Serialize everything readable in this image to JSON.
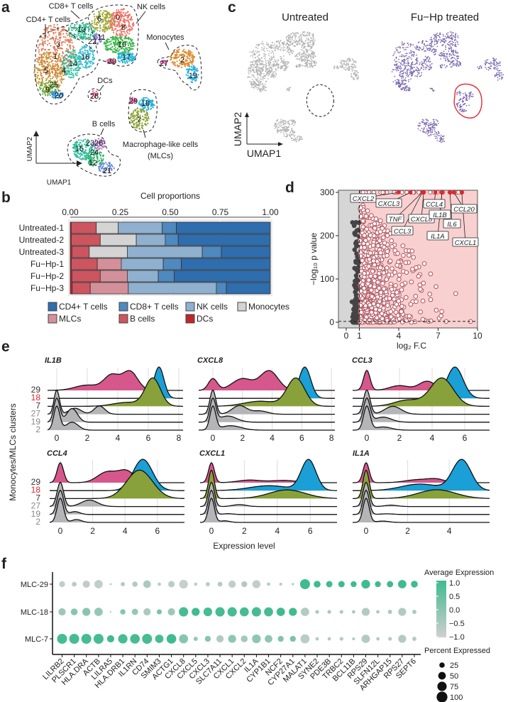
{
  "panel_letters": {
    "a": "a",
    "b": "b",
    "c": "c",
    "d": "d",
    "e": "e",
    "f": "f"
  },
  "panel_a": {
    "groups": {
      "cd8": "CD8+ T cells",
      "nk": "NK cells",
      "cd4": "CD4+ T cells",
      "mono": "Monocytes",
      "dcs": "DCs",
      "bcells": "B cells",
      "mlc_1": "Macrophage-like cells",
      "mlc_2": "(MLCs)"
    },
    "clusters": [
      "6",
      "0",
      "8",
      "13",
      "11",
      "22",
      "10",
      "17",
      "30",
      "3",
      "1",
      "16",
      "14",
      "5",
      "4",
      "25",
      "9",
      "20",
      "28",
      "27",
      "2",
      "19",
      "29",
      "18",
      "7",
      "23",
      "26",
      "15",
      "24",
      "12",
      "21"
    ],
    "xlabel": "UMAP1",
    "ylabel": "UMAP2"
  },
  "panel_c": {
    "title_left": "Untreated",
    "title_right": "Fu−Hp treated",
    "xlabel": "UMAP1",
    "ylabel": "UMAP2",
    "point_color_untreated": "#b3b3b3",
    "point_color_treated": "#7a69b0",
    "highlight_color": "#e8232a"
  },
  "chart_data": [
    {
      "panel": "b",
      "type": "bar",
      "stacked": true,
      "orientation": "horizontal",
      "title": "Cell proportions",
      "categories": [
        "Untreated-1",
        "Untreated-2",
        "Untreated-3",
        "Fu−Hp-1",
        "Fu−Hp-2",
        "Fu−Hp-3"
      ],
      "xticks": [
        "0.00",
        "0.25",
        "0.50",
        "0.75",
        "1.00"
      ],
      "xlim": [
        0,
        1
      ],
      "series": [
        {
          "name": "DCs",
          "color": "#c0262c",
          "values": [
            0.005,
            0.005,
            0.008,
            0.005,
            0.008,
            0.01
          ]
        },
        {
          "name": "B cells",
          "color": "#cc5560",
          "values": [
            0.125,
            0.145,
            0.087,
            0.13,
            0.142,
            0.09
          ]
        },
        {
          "name": "MLCs",
          "color": "#d4909a",
          "values": [
            0,
            0,
            0,
            0.12,
            0.135,
            0.19
          ]
        },
        {
          "name": "Monocytes",
          "color": "#d4d4d4",
          "values": [
            0.11,
            0.18,
            0.19,
            0,
            0,
            0
          ]
        },
        {
          "name": "NK cells",
          "color": "#8fb0cf",
          "values": [
            0.22,
            0.145,
            0.375,
            0.21,
            0.155,
            0.44
          ]
        },
        {
          "name": "CD8+ T cells",
          "color": "#4e89bf",
          "values": [
            0.07,
            0.065,
            0.095,
            0.09,
            0.08,
            0.05
          ]
        },
        {
          "name": "CD4+ T cells",
          "color": "#2e6dae",
          "values": [
            0.47,
            0.46,
            0.245,
            0.445,
            0.48,
            0.22
          ]
        }
      ],
      "legend_order": [
        "CD4+ T cells",
        "CD8+ T cells",
        "NK cells",
        "Monocytes",
        "MLCs",
        "B cells",
        "DCs"
      ],
      "legend_position": "bottom"
    },
    {
      "panel": "d",
      "type": "scatter",
      "xlabel": "log₂ F.C",
      "ylabel": "−log₁₀ p value",
      "xticks": [
        0,
        1,
        4,
        7,
        10
      ],
      "yticks": [
        0,
        100,
        200,
        300
      ],
      "xlim": [
        -0.6,
        10
      ],
      "ylim": [
        -5,
        305
      ],
      "fc_threshold": 1,
      "labeled_genes": [
        {
          "gene": "CXCL2",
          "log2fc": 4.0,
          "neglog10p": 300
        },
        {
          "gene": "CXCL3",
          "log2fc": 4.9,
          "neglog10p": 300
        },
        {
          "gene": "TNF",
          "log2fc": 5.8,
          "neglog10p": 300
        },
        {
          "gene": "CCL3",
          "log2fc": 5.8,
          "neglog10p": 300
        },
        {
          "gene": "CXCL8",
          "log2fc": 5.9,
          "neglog10p": 300
        },
        {
          "gene": "CCL4",
          "log2fc": 6.8,
          "neglog10p": 300
        },
        {
          "gene": "IL1B",
          "log2fc": 7.3,
          "neglog10p": 300
        },
        {
          "gene": "IL1A",
          "log2fc": 7.3,
          "neglog10p": 300
        },
        {
          "gene": "IL6",
          "log2fc": 7.9,
          "neglog10p": 300
        },
        {
          "gene": "CCL20",
          "log2fc": 8.2,
          "neglog10p": 300
        },
        {
          "gene": "CXCL1",
          "log2fc": 8.8,
          "neglog10p": 300
        }
      ],
      "colors": {
        "up": "#b45c66",
        "up_fill": "#ffffff",
        "ns": "#444444",
        "labeled": "#e8232a",
        "up_region": "#f9d0d0",
        "ns_region": "#d6d6d6"
      }
    },
    {
      "panel": "e",
      "type": "area",
      "subtype": "ridgeline",
      "xlabel": "Expression level",
      "ylabel": "Monocytes/MLCs clusters",
      "clusters": [
        "29",
        "18",
        "7",
        "27",
        "19",
        "2"
      ],
      "cluster_colors": [
        "#d6578c",
        "#1a9fd6",
        "#88a13a",
        "#b5b5b8",
        "#b5b5b8",
        "#b5b5b8"
      ],
      "cluster_label_colors": [
        "#333333",
        "#e8232a",
        "#333333",
        "#888888",
        "#888888",
        "#888888"
      ],
      "genes": [
        {
          "gene": "IL1B",
          "xticks": [
            0,
            2,
            4,
            6,
            8
          ],
          "xmax": 8.3,
          "density_components": [
            [
              [
                2,
                0.8,
                0.2
              ],
              [
                3.6,
                0.5,
                0.35
              ],
              [
                4.8,
                0.5,
                0.45
              ]
            ],
            [
              [
                6.7,
                0.33,
                1
              ]
            ],
            [
              [
                6.3,
                0.5,
                0.8
              ],
              [
                4.6,
                0.9,
                0.2
              ]
            ],
            [
              [
                0,
                0.18,
                0.45
              ],
              [
                1.2,
                0.4,
                0.25
              ],
              [
                2.8,
                0.35,
                0.3
              ]
            ],
            [
              [
                0,
                0.2,
                0.5
              ],
              [
                1,
                0.35,
                0.5
              ]
            ],
            [
              [
                0,
                0.2,
                0.6
              ],
              [
                1,
                0.4,
                0.4
              ]
            ]
          ]
        },
        {
          "gene": "CXCL8",
          "xticks": [
            0,
            2,
            4,
            6,
            8
          ],
          "xmax": 8.2,
          "density_components": [
            [
              [
                0,
                0.3,
                0.15
              ],
              [
                2,
                0.7,
                0.35
              ],
              [
                3.8,
                0.6,
                0.5
              ]
            ],
            [
              [
                6.2,
                0.4,
                1
              ]
            ],
            [
              [
                5.6,
                0.6,
                0.75
              ],
              [
                3.2,
                1.1,
                0.25
              ]
            ],
            [
              [
                0,
                0.2,
                0.45
              ],
              [
                1.8,
                0.5,
                0.4
              ],
              [
                3.2,
                0.5,
                0.15
              ]
            ],
            [
              [
                0,
                0.2,
                0.55
              ],
              [
                1,
                0.6,
                0.45
              ]
            ],
            [
              [
                0,
                0.2,
                0.6
              ],
              [
                1.2,
                0.7,
                0.4
              ]
            ]
          ]
        },
        {
          "gene": "CCL3",
          "xticks": [
            0,
            2,
            4,
            6
          ],
          "xmax": 7.4,
          "density_components": [
            [
              [
                0,
                0.2,
                0.35
              ],
              [
                2,
                0.6,
                0.25
              ],
              [
                3.7,
                0.5,
                0.4
              ]
            ],
            [
              [
                5.4,
                0.5,
                1
              ]
            ],
            [
              [
                4.6,
                0.7,
                0.8
              ],
              [
                2.5,
                0.8,
                0.2
              ]
            ],
            [
              [
                0,
                0.2,
                0.55
              ],
              [
                1.6,
                0.5,
                0.45
              ]
            ],
            [
              [
                0,
                0.2,
                0.65
              ],
              [
                1,
                0.5,
                0.35
              ]
            ],
            [
              [
                0,
                0.2,
                0.75
              ],
              [
                1,
                0.5,
                0.25
              ]
            ]
          ]
        },
        {
          "gene": "CCL4",
          "xticks": [
            0,
            2,
            4,
            6
          ],
          "xmax": 7.6,
          "density_components": [
            [
              [
                0,
                0.2,
                0.25
              ],
              [
                2.9,
                0.6,
                0.4
              ],
              [
                4.1,
                0.5,
                0.35
              ]
            ],
            [
              [
                5.1,
                0.6,
                1
              ]
            ],
            [
              [
                4.9,
                0.8,
                1
              ]
            ],
            [
              [
                0,
                0.2,
                0.6
              ],
              [
                1.8,
                0.5,
                0.4
              ]
            ],
            [
              [
                0,
                0.2,
                0.85
              ],
              [
                0.9,
                0.3,
                0.15
              ]
            ],
            [
              [
                0,
                0.2,
                0.85
              ],
              [
                1,
                0.3,
                0.15
              ]
            ]
          ]
        },
        {
          "gene": "CXCL1",
          "xticks": [
            0,
            2,
            4,
            6
          ],
          "xmax": 7.6,
          "density_components": [
            [
              [
                0,
                0.18,
                0.5
              ],
              [
                2.3,
                0.7,
                0.25
              ],
              [
                4.4,
                0.8,
                0.25
              ]
            ],
            [
              [
                5.9,
                0.45,
                0.7
              ],
              [
                3.5,
                1.2,
                0.3
              ]
            ],
            [
              [
                0,
                0.18,
                0.35
              ],
              [
                4.6,
                1.1,
                0.65
              ]
            ],
            [
              [
                0,
                0.18,
                0.85
              ],
              [
                1.7,
                0.4,
                0.15
              ]
            ],
            [
              [
                0,
                0.18,
                0.95
              ],
              [
                1,
                0.3,
                0.05
              ]
            ],
            [
              [
                0,
                0.18,
                0.9
              ],
              [
                0.8,
                0.3,
                0.1
              ]
            ]
          ]
        },
        {
          "gene": "IL1A",
          "xticks": [
            0,
            2,
            4
          ],
          "xmax": 5.8,
          "density_components": [
            [
              [
                0,
                0.15,
                0.5
              ],
              [
                2.5,
                0.6,
                0.3
              ],
              [
                3.4,
                0.4,
                0.2
              ]
            ],
            [
              [
                4.6,
                0.45,
                0.7
              ],
              [
                2.6,
                0.9,
                0.3
              ]
            ],
            [
              [
                0,
                0.15,
                0.35
              ],
              [
                3.4,
                0.9,
                0.65
              ]
            ],
            [
              [
                0,
                0.15,
                0.9
              ],
              [
                1.2,
                0.3,
                0.1
              ]
            ],
            [
              [
                0,
                0.15,
                0.95
              ],
              [
                1,
                0.3,
                0.05
              ]
            ],
            [
              [
                0,
                0.15,
                0.9
              ],
              [
                0.8,
                0.3,
                0.1
              ]
            ]
          ]
        }
      ]
    },
    {
      "panel": "f",
      "type": "scatter",
      "subtype": "dotplot",
      "rows": [
        "MLC-29",
        "MLC-18",
        "MLC-7"
      ],
      "genes": [
        "LILRB2",
        "PLSCR1",
        "HLA.DRA",
        "ACTB",
        "LILRA5",
        "HLA.DRB1",
        "IL1RN",
        "CD74",
        "SMIM3",
        "ACTG1",
        "CXCL8",
        "CXCL5",
        "CXCL3",
        "SLC7A11",
        "CXCL1",
        "CXCL2",
        "IL1A",
        "CYP1B1",
        "NCF2",
        "CYP27A1",
        "MALAT1",
        "SYNE2",
        "PDE3B",
        "TRBC2",
        "BCL11B",
        "RPS29",
        "SLFN12L",
        "ARHGAP15",
        "RPS27",
        "SEPT6"
      ],
      "percent_expressed": [
        [
          30,
          20,
          45,
          60,
          4,
          15,
          25,
          50,
          10,
          35,
          65,
          10,
          15,
          20,
          45,
          30,
          55,
          10,
          8,
          5,
          85,
          40,
          35,
          35,
          30,
          65,
          30,
          35,
          60,
          40
        ],
        [
          45,
          40,
          55,
          60,
          3,
          25,
          35,
          45,
          22,
          45,
          75,
          55,
          65,
          75,
          75,
          70,
          75,
          70,
          60,
          55,
          60,
          12,
          12,
          12,
          10,
          55,
          10,
          15,
          55,
          15
        ],
        [
          85,
          85,
          85,
          85,
          45,
          75,
          80,
          85,
          60,
          80,
          70,
          15,
          30,
          45,
          55,
          40,
          65,
          50,
          30,
          30,
          70,
          10,
          10,
          12,
          8,
          60,
          10,
          12,
          55,
          15
        ]
      ],
      "average_expression": [
        [
          -0.8,
          -0.7,
          -0.8,
          -0.8,
          -0.8,
          -0.6,
          -0.6,
          -0.5,
          -0.7,
          -0.7,
          -0.9,
          -0.8,
          -0.7,
          -0.6,
          -0.8,
          -0.6,
          -0.8,
          -0.7,
          -0.7,
          -0.7,
          1.0,
          1.0,
          1.0,
          1.0,
          1.0,
          1.0,
          1.0,
          1.0,
          1.0,
          1.0
        ],
        [
          -0.3,
          0.0,
          0.0,
          -0.2,
          -1.0,
          0.0,
          -0.2,
          -0.5,
          0.2,
          -0.3,
          0.9,
          1.0,
          0.9,
          0.9,
          0.9,
          0.9,
          0.9,
          0.9,
          1.0,
          1.0,
          -0.6,
          -0.5,
          -0.5,
          -0.5,
          -0.5,
          -0.6,
          -0.5,
          -0.5,
          -0.6,
          -0.5
        ],
        [
          0.9,
          0.9,
          0.9,
          0.9,
          1.0,
          0.9,
          0.9,
          0.9,
          0.9,
          1.0,
          0.0,
          -0.2,
          0.0,
          -0.6,
          -0.1,
          -0.4,
          -0.1,
          -0.1,
          0.1,
          0.2,
          -0.7,
          -0.6,
          -0.6,
          -0.6,
          -0.6,
          -0.6,
          -0.6,
          -0.6,
          -0.6,
          -0.6
        ]
      ],
      "color_legend": {
        "title": "Average Expression",
        "ticks": [
          "1.0",
          "0.5",
          "0.0",
          "−0.5",
          "−1.0"
        ],
        "low": "#cfcfcf",
        "high": "#3fbb8f"
      },
      "size_legend": {
        "title": "Percent Expressed",
        "values": [
          25,
          50,
          75,
          100
        ],
        "labels": [
          "25",
          "50",
          "75",
          "100"
        ]
      }
    }
  ]
}
